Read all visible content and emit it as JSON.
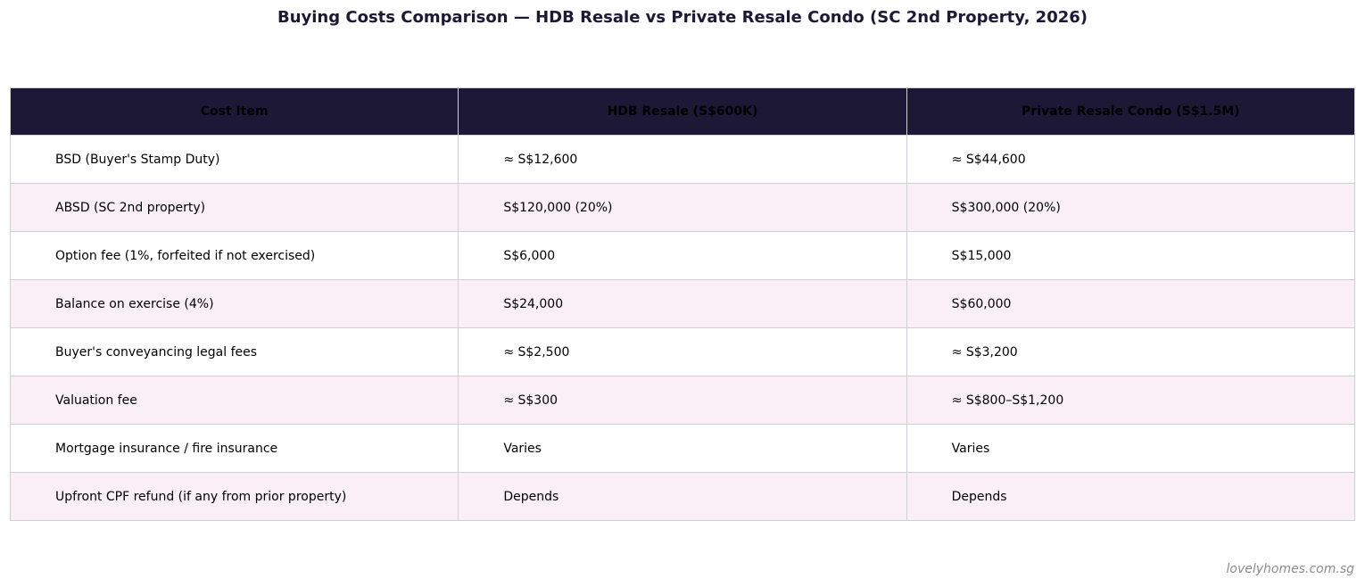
{
  "title": "Buying Costs Comparison — HDB Resale vs Private Resale Condo (SC 2nd Property, 2026)",
  "footer": "lovelyhomes.com.sg",
  "colors": {
    "header_bg": "#1c1836",
    "title_text": "#1c1836",
    "row_alt_bg": "#f9eff5",
    "row_bg": "#ffffff",
    "border": "#cfcfd6",
    "footer_text": "#8c8c8c"
  },
  "chart_data": {
    "type": "table",
    "columns": [
      "Cost Item",
      "HDB Resale (S$600K)",
      "Private Resale Condo (S$1.5M)"
    ],
    "rows": [
      [
        "BSD (Buyer's Stamp Duty)",
        "≈ S$12,600",
        "≈ S$44,600"
      ],
      [
        "ABSD (SC 2nd property)",
        "S$120,000 (20%)",
        "S$300,000 (20%)"
      ],
      [
        "Option fee (1%, forfeited if not exercised)",
        "S$6,000",
        "S$15,000"
      ],
      [
        "Balance on exercise (4%)",
        "S$24,000",
        "S$60,000"
      ],
      [
        "Buyer's conveyancing legal fees",
        "≈ S$2,500",
        "≈ S$3,200"
      ],
      [
        "Valuation fee",
        "≈ S$300",
        "≈ S$800–S$1,200"
      ],
      [
        "Mortgage insurance / fire insurance",
        "Varies",
        "Varies"
      ],
      [
        "Upfront CPF refund (if any from prior property)",
        "Depends",
        "Depends"
      ]
    ]
  }
}
